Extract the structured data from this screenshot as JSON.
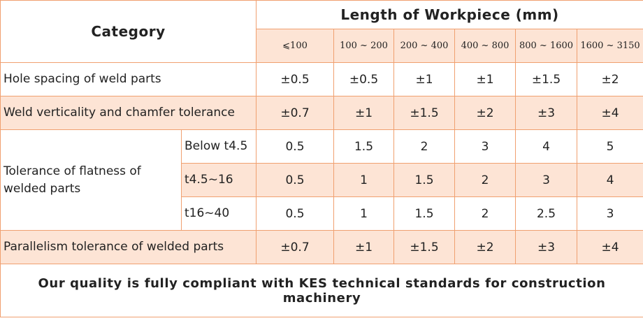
{
  "table": {
    "header": {
      "category": "Category",
      "length": "Length of Workpiece (mm)",
      "ranges": [
        "⩽100",
        "100 ~ 200",
        "200 ~ 400",
        "400 ~ 800",
        "800 ~ 1600",
        "1600 ~ 3150"
      ]
    },
    "rows": [
      {
        "label": "Hole spacing of weld parts",
        "values": [
          "±0.5",
          "±0.5",
          "±1",
          "±1",
          "±1.5",
          "±2"
        ]
      },
      {
        "label": "Weld verticality and chamfer tolerance",
        "values": [
          "±0.7",
          "±1",
          "±1.5",
          "±2",
          "±3",
          "±4"
        ]
      },
      {
        "label": "Tolerance of flatness of welded parts",
        "subrows": [
          {
            "label": "Below t4.5",
            "values": [
              "0.5",
              "1.5",
              "2",
              "3",
              "4",
              "5"
            ]
          },
          {
            "label": "t4.5~16",
            "values": [
              "0.5",
              "1",
              "1.5",
              "2",
              "3",
              "4"
            ]
          },
          {
            "label": "t16~40",
            "values": [
              "0.5",
              "1",
              "1.5",
              "2",
              "2.5",
              "3"
            ]
          }
        ]
      },
      {
        "label": "Parallelism tolerance of welded parts",
        "values": [
          "±0.7",
          "±1",
          "±1.5",
          "±2",
          "±3",
          "±4"
        ]
      }
    ],
    "footer": "Our quality is fully compliant with KES technical standards for construction machinery"
  }
}
